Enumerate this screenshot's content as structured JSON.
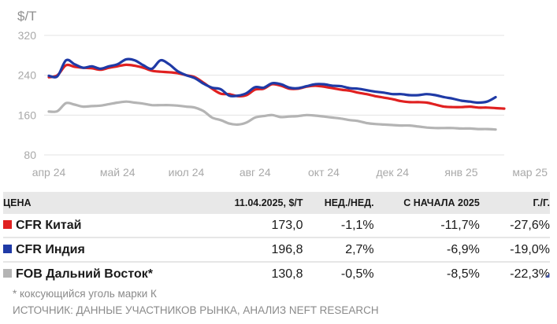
{
  "chart_data": {
    "type": "line",
    "ylabel": "$/T",
    "ylim": [
      80,
      320
    ],
    "yticks": [
      80,
      160,
      240,
      320
    ],
    "xlabels": [
      "апр 24",
      "май 24",
      "июл 24",
      "авг 24",
      "окт 24",
      "дек 24",
      "янв 25",
      "мар 25"
    ],
    "xtick_index": [
      0,
      8,
      16,
      24,
      32,
      40,
      48,
      56
    ],
    "grid": true,
    "series": [
      {
        "name": "CFR Индия",
        "color": "#1f3aa6",
        "values": [
          239,
          238,
          270,
          262,
          255,
          258,
          253,
          258,
          262,
          272,
          270,
          260,
          253,
          270,
          262,
          248,
          240,
          234,
          223,
          215,
          212,
          199,
          199,
          204,
          216,
          215,
          224,
          222,
          215,
          214,
          218,
          222,
          222,
          219,
          218,
          214,
          213,
          210,
          207,
          205,
          202,
          202,
          200,
          200,
          202,
          200,
          196,
          193,
          189,
          187,
          185,
          187,
          196
        ]
      },
      {
        "name": "CFR Китай",
        "color": "#e02020",
        "values": [
          236,
          240,
          260,
          257,
          255,
          254,
          251,
          255,
          258,
          261,
          259,
          255,
          249,
          247,
          246,
          244,
          240,
          236,
          225,
          213,
          203,
          202,
          198,
          200,
          211,
          213,
          222,
          219,
          213,
          213,
          217,
          219,
          217,
          214,
          211,
          209,
          205,
          202,
          198,
          195,
          192,
          188,
          186,
          186,
          185,
          181,
          177,
          176,
          176,
          177,
          175,
          175,
          174,
          173
        ]
      },
      {
        "name": "FOB Дальний Восток*",
        "color": "#b4b4b4",
        "values": [
          167,
          168,
          184,
          181,
          177,
          178,
          179,
          182,
          185,
          187,
          185,
          183,
          180,
          180,
          180,
          179,
          177,
          175,
          168,
          155,
          150,
          143,
          141,
          145,
          155,
          158,
          160,
          156,
          157,
          158,
          160,
          159,
          157,
          155,
          153,
          150,
          148,
          144,
          142,
          141,
          140,
          139,
          139,
          137,
          135,
          134,
          134,
          134,
          133,
          133,
          132,
          132,
          131
        ]
      }
    ]
  },
  "table": {
    "headers": [
      "ЦЕНА",
      "11.04.2025, $/Т",
      "НЕД./НЕД.",
      "С НАЧАЛА 2025",
      "Г./Г."
    ],
    "rows": [
      {
        "name": "CFR Китай",
        "color": "#e02020",
        "price": "173,0",
        "wow": "-1,1%",
        "ytd": "-11,7%",
        "yoy": "-27,6%"
      },
      {
        "name": "CFR Индия",
        "color": "#1f3aa6",
        "price": "196,8",
        "wow": "2,7%",
        "ytd": "-6,9%",
        "yoy": "-19,0%"
      },
      {
        "name": "FOB Дальний Восток*",
        "color": "#b4b4b4",
        "price": "130,8",
        "wow": "-0,5%",
        "ytd": "-8,5%",
        "yoy": "-22,3%"
      }
    ]
  },
  "footnote": "* коксующийся уголь марки К",
  "source": "ИСТОЧНИК: ДАННЫЕ УЧАСТНИКОВ РЫНКА, АНАЛИЗ NEFT RESEARCH"
}
